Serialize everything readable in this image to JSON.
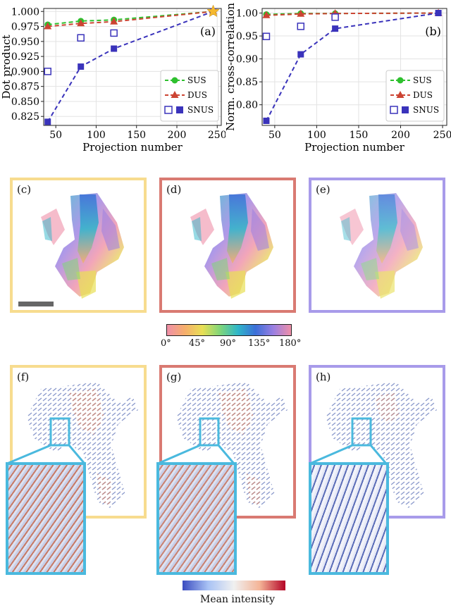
{
  "chart_data": [
    {
      "type": "line",
      "panel_label": "(a)",
      "xlabel": "Projection number",
      "ylabel": "Dot product",
      "xlim": [
        35,
        255
      ],
      "ylim": [
        0.81,
        1.005
      ],
      "xticks": [
        50,
        100,
        150,
        200,
        250
      ],
      "yticks": [
        0.825,
        0.85,
        0.875,
        0.9,
        0.925,
        0.95,
        0.975,
        1.0
      ],
      "ytick_labels": [
        "0.825",
        "0.850",
        "0.875",
        "0.900",
        "0.925",
        "0.950",
        "0.975",
        "1.000"
      ],
      "grid": true,
      "legend_position": "bottom-right",
      "series": [
        {
          "name": "SUS",
          "color": "#2ec02e",
          "marker": "circle",
          "x": [
            40,
            81,
            122,
            245
          ],
          "y": [
            0.978,
            0.984,
            0.986,
            1.0
          ]
        },
        {
          "name": "DUS",
          "color": "#cc4433",
          "marker": "triangle",
          "x": [
            40,
            81,
            122,
            245
          ],
          "y": [
            0.975,
            0.98,
            0.983,
            1.0
          ]
        },
        {
          "name": "SNUS",
          "color": "#3a33bb",
          "marker": "square",
          "hollow_x": [
            40,
            81,
            122
          ],
          "hollow_y": [
            0.9,
            0.956,
            0.964
          ],
          "x": [
            40,
            81,
            122,
            245
          ],
          "y": [
            0.816,
            0.908,
            0.938,
            1.0
          ]
        }
      ],
      "reference_marker": {
        "shape": "star",
        "color": "#f5b82e",
        "x": 245,
        "y": 1.0
      }
    },
    {
      "type": "line",
      "panel_label": "(b)",
      "xlabel": "Projection number",
      "ylabel": "Norm. cross-correlation",
      "xlim": [
        35,
        255
      ],
      "ylim": [
        0.755,
        1.01
      ],
      "xticks": [
        50,
        100,
        150,
        200,
        250
      ],
      "yticks": [
        0.8,
        0.85,
        0.9,
        0.95,
        1.0
      ],
      "ytick_labels": [
        "0.80",
        "0.85",
        "0.90",
        "0.95",
        "1.00"
      ],
      "grid": true,
      "legend_position": "bottom-right",
      "series": [
        {
          "name": "SUS",
          "color": "#2ec02e",
          "marker": "circle",
          "x": [
            40,
            81,
            122,
            245
          ],
          "y": [
            0.997,
            0.999,
            0.999,
            1.0
          ]
        },
        {
          "name": "DUS",
          "color": "#cc4433",
          "marker": "triangle",
          "x": [
            40,
            81,
            122,
            245
          ],
          "y": [
            0.995,
            0.998,
            0.999,
            1.0
          ]
        },
        {
          "name": "SNUS",
          "color": "#3a33bb",
          "marker": "square",
          "hollow_x": [
            40,
            81,
            122
          ],
          "hollow_y": [
            0.949,
            0.971,
            0.991
          ],
          "x": [
            40,
            81,
            122,
            245
          ],
          "y": [
            0.765,
            0.91,
            0.966,
            1.0
          ]
        }
      ]
    }
  ],
  "panels": {
    "c": "(c)",
    "d": "(d)",
    "e": "(e)",
    "f": "(f)",
    "g": "(g)",
    "h": "(h)"
  },
  "frame_colors": {
    "sus": "#f7dc8f",
    "dus": "#d97a72",
    "snus": "#a89bea",
    "inset": "#4ab9de"
  },
  "orientation_colorbar": {
    "ticks": [
      "0°",
      "45°",
      "90°",
      "135°",
      "180°"
    ],
    "colors": [
      "#ef8fa8",
      "#f6ae6c",
      "#e8df55",
      "#7fd67a",
      "#2fb6c9",
      "#3c6fd8",
      "#9a7fe2",
      "#ef8fa8"
    ]
  },
  "intensity_colorbar": {
    "label": "Mean intensity",
    "colors": [
      "#3b4cc0",
      "#a9c3f5",
      "#f0f0f0",
      "#f4b497",
      "#b40426"
    ]
  }
}
